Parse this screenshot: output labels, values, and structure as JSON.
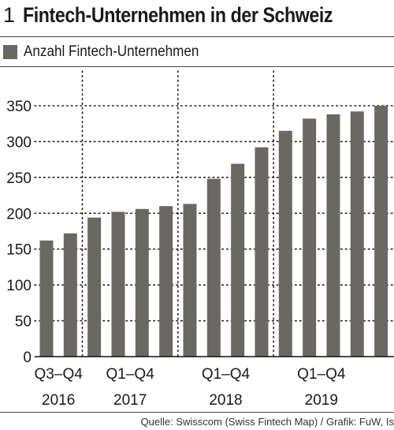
{
  "header": {
    "figure_number": "1",
    "title": "Fintech-Unternehmen in der Schweiz"
  },
  "footer": {
    "source": "Quelle: Swisscom (Swiss Fintech Map) / Grafik: FuW, Is"
  },
  "colors": {
    "bar": "#6b6863",
    "grid": "#222222",
    "text": "#1a1a1a"
  },
  "chart_data": {
    "type": "bar",
    "title": "Fintech-Unternehmen in der Schweiz",
    "legend": {
      "placement": "top-left",
      "entries": [
        "Anzahl Fintech-Unternehmen"
      ]
    },
    "series": [
      {
        "name": "Anzahl Fintech-Unternehmen",
        "values": [
          162,
          172,
          194,
          202,
          206,
          210,
          213,
          248,
          269,
          292,
          315,
          332,
          338,
          342,
          350
        ]
      }
    ],
    "quarters": [
      "Q3",
      "Q4",
      "Q1",
      "Q2",
      "Q3",
      "Q4",
      "Q1",
      "Q2",
      "Q3",
      "Q4",
      "Q1",
      "Q2",
      "Q3",
      "Q4",
      "Q1"
    ],
    "x_groups": [
      {
        "quarter_label": "Q3–Q4",
        "year": "2016",
        "first_index": 0,
        "last_index": 1
      },
      {
        "quarter_label": "Q1–Q4",
        "year": "2017",
        "first_index": 2,
        "last_index": 5
      },
      {
        "quarter_label": "Q1–Q4",
        "year": "2018",
        "first_index": 6,
        "last_index": 9
      },
      {
        "quarter_label": "Q1–Q4",
        "year": "2019",
        "first_index": 10,
        "last_index": 13
      }
    ],
    "ylim": [
      0,
      350
    ],
    "yticks": [
      0,
      50,
      100,
      150,
      200,
      250,
      300,
      350
    ],
    "xlabel": "",
    "ylabel": "",
    "grid": {
      "horizontal": true,
      "vertical_year_separators": true,
      "style": "dotted"
    }
  }
}
